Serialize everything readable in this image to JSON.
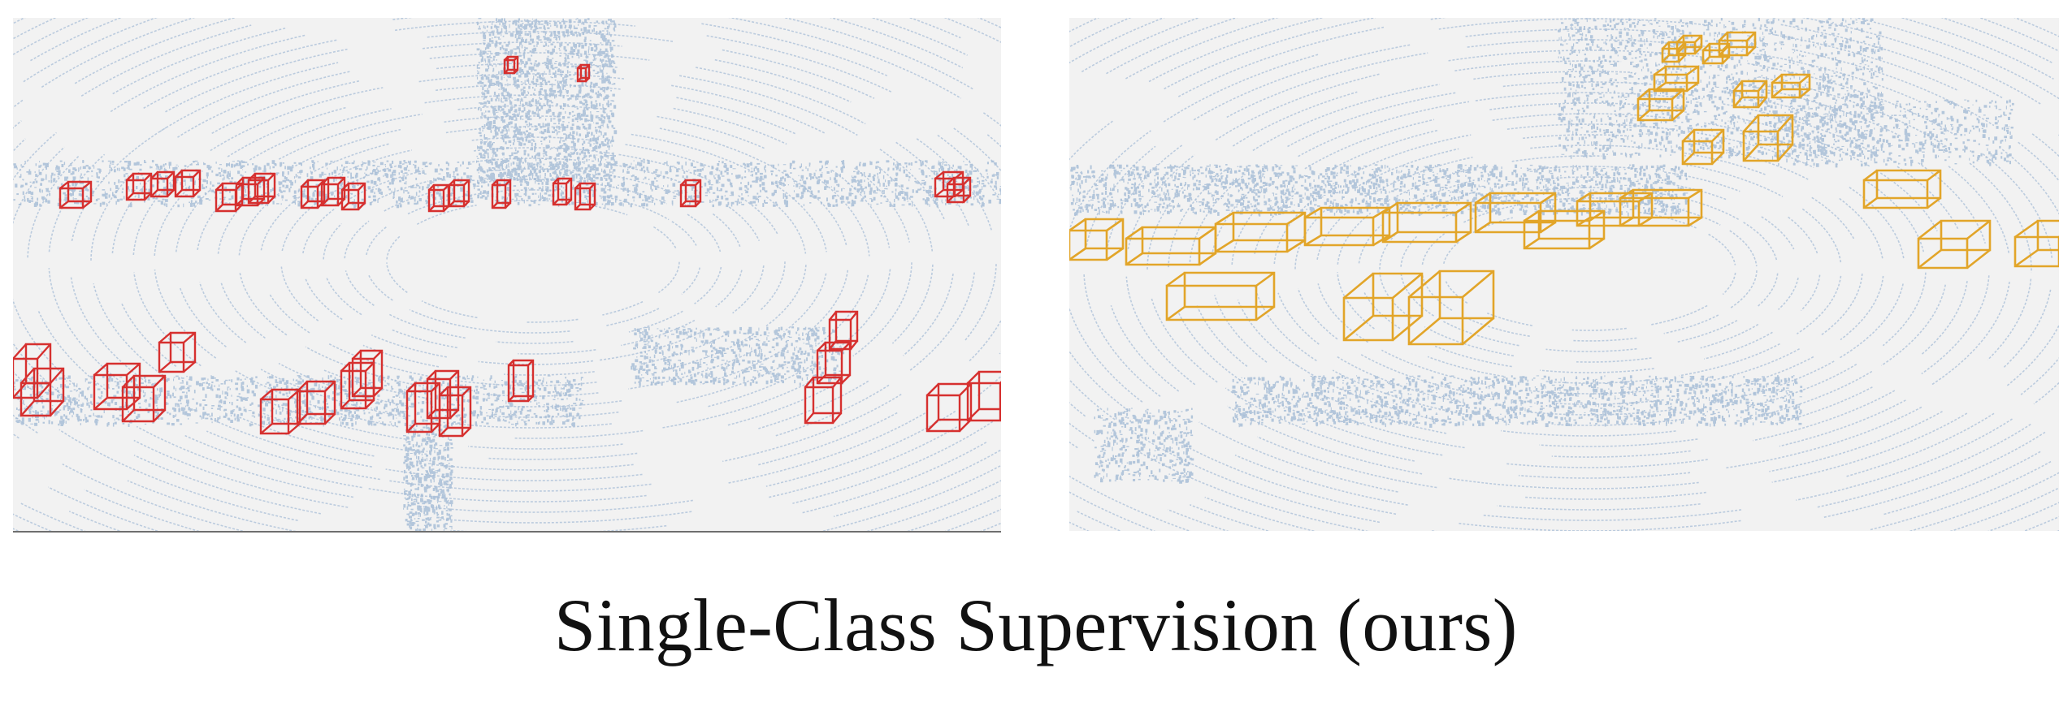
{
  "caption": "Single-Class Supervision (ours)",
  "colors": {
    "background": "#f2f2f2",
    "point_cloud": "#a9bfd8",
    "left_boxes": "#d6302f",
    "right_boxes": "#e2a529"
  },
  "panels": [
    {
      "name": "left-panel",
      "description_shown": "lidar point cloud with red 3D bounding boxes (pedestrian detections)"
    },
    {
      "name": "right-panel",
      "description_shown": "lidar point cloud with orange 3D bounding boxes (vehicle detections)"
    }
  ]
}
